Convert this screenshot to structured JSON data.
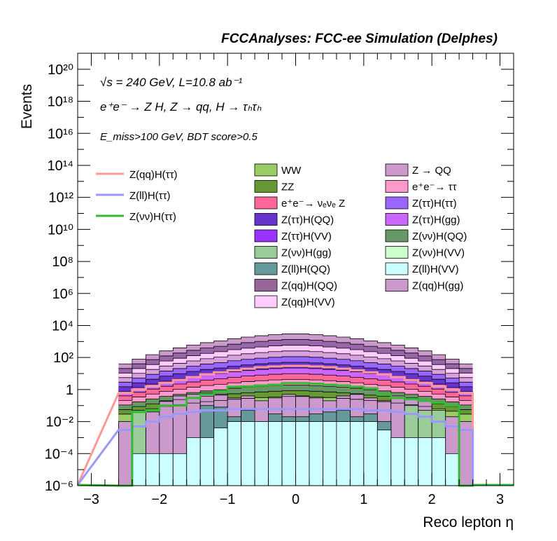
{
  "header": "FCCAnalyses: FCC-ee Simulation (Delphes)",
  "annotations": {
    "line1": "√s = 240 GeV, L=10.8 ab⁻¹",
    "line2": "e⁺e⁻ → Z H, Z → qq, H → τₕτₕ",
    "line3": "E_miss>100 GeV, BDT score>0.5"
  },
  "chart_data": {
    "type": "histogram",
    "xlabel": "Reco lepton η",
    "ylabel": "Events",
    "xlim": [
      -3.2,
      3.2
    ],
    "ylim": [
      1e-06,
      1e+21
    ],
    "yscale": "log",
    "x_ticks": [
      "−3",
      "−2",
      "−1",
      "0",
      "1",
      "2",
      "3"
    ],
    "y_ticks": [
      "10⁻⁶",
      "10⁻⁴",
      "10⁻²",
      "1",
      "10²",
      "10⁴",
      "10⁶",
      "10⁸",
      "10¹⁰",
      "10¹²",
      "10¹⁴",
      "10¹⁶",
      "10¹⁸",
      "10²⁰"
    ],
    "bin_edges": [
      -2.6,
      -2.4,
      -2.2,
      -2.0,
      -1.8,
      -1.6,
      -1.4,
      -1.2,
      -1.0,
      -0.8,
      -0.6,
      -0.4,
      -0.2,
      0.0,
      0.2,
      0.4,
      0.6,
      0.8,
      1.0,
      1.2,
      1.4,
      1.6,
      1.8,
      2.0,
      2.2,
      2.4,
      2.6
    ],
    "stack_top": [
      40,
      80,
      150,
      260,
      400,
      600,
      850,
      1100,
      1500,
      1900,
      2300,
      2700,
      3000,
      3000,
      2700,
      2300,
      1900,
      1500,
      1100,
      850,
      600,
      400,
      260,
      150,
      80,
      40
    ],
    "stacked_fill_colors": [
      "#cc99cc",
      "#9966aa",
      "#ffccff",
      "#d8a0dc",
      "#9966ff",
      "#6633cc",
      "#cc66ff",
      "#ff6699",
      "#ff99cc",
      "#669966",
      "#669933",
      "#99cc66"
    ],
    "stacked_backgrounds": [
      {
        "name": "Z(ll)H(VV)",
        "color": "#ccffff",
        "values": [
          0,
          0.0001,
          0.0001,
          0.0001,
          0.0001,
          0.001,
          0.001,
          0.004,
          0.01,
          0.01,
          0.01,
          0.01,
          0.01,
          0.01,
          0.01,
          0.01,
          0.01,
          0.01,
          0.01,
          0.003,
          0.001,
          0.001,
          0.001,
          0.001,
          0.0001,
          0
        ]
      },
      {
        "name": "Z(ll)H(QQ)",
        "color": "#669999",
        "values": [
          0,
          0,
          0,
          0,
          0,
          0,
          0.1,
          0.08,
          0.02,
          0.05,
          0.008,
          0.03,
          0.02,
          0.02,
          0.03,
          0.04,
          0.05,
          0.02,
          0.03,
          0.01,
          0,
          0,
          0,
          0,
          0,
          0
        ]
      },
      {
        "name": "Z(νν)H(gg)",
        "color": "#99cc99",
        "values": [
          0,
          0.05,
          0,
          0,
          0,
          0,
          0,
          0,
          0,
          0,
          0,
          0,
          0,
          0,
          0,
          0,
          0,
          0,
          0,
          0,
          0,
          0.1,
          0.05,
          0.05,
          0,
          0
        ]
      },
      {
        "name": "Z(qq)H(gg)",
        "color": "#cc99cc",
        "values": [
          0.01,
          0.02,
          0.04,
          0.2,
          0.4,
          0.5,
          0.6,
          0.5,
          0.3,
          0.4,
          0.2,
          0.3,
          0.5,
          0.4,
          0.3,
          0.2,
          0.4,
          0.5,
          0.3,
          0.2,
          0.4,
          0.3,
          0.2,
          0.04,
          0.02,
          0.01
        ]
      },
      {
        "name": "Z(qq)H(QQ)",
        "color": "#996699",
        "values": [
          0.02,
          0.03,
          0.1,
          0.2,
          0.3,
          0.4,
          0.6,
          0.8,
          1.0,
          1.2,
          1.4,
          1.5,
          1.6,
          1.6,
          1.5,
          1.4,
          1.2,
          1.0,
          0.8,
          0.6,
          0.4,
          0.3,
          0.2,
          0.1,
          0.03,
          0.02
        ]
      },
      {
        "name": "Z(ττ)H(ττ)",
        "color": "#9966ff",
        "values": [
          0.1,
          0.2,
          0.3,
          0.5,
          0.8,
          1.0,
          1.3,
          1.6,
          2.0,
          2.3,
          2.6,
          2.8,
          3.0,
          3.0,
          2.8,
          2.6,
          2.3,
          2.0,
          1.6,
          1.3,
          1.0,
          0.8,
          0.5,
          0.3,
          0.2,
          0.1
        ]
      },
      {
        "name": "Z(ττ)H(QQ)",
        "color": "#6633cc",
        "values": [
          0.3,
          0.6,
          1.0,
          1.6,
          2.4,
          3.4,
          4.6,
          6.0,
          7.6,
          9.0,
          10,
          11,
          12,
          12,
          11,
          10,
          9.0,
          7.6,
          6.0,
          4.6,
          3.4,
          2.4,
          1.6,
          1.0,
          0.6,
          0.3
        ]
      },
      {
        "name": "e⁺e⁻→νₑνₑ Z",
        "color": "#ff6699",
        "values": [
          1.0,
          2.0,
          3.5,
          6.0,
          9.0,
          13,
          18,
          24,
          30,
          36,
          42,
          47,
          50,
          50,
          47,
          42,
          36,
          30,
          24,
          18,
          13,
          9.0,
          6.0,
          3.5,
          2.0,
          1.0
        ]
      },
      {
        "name": "e⁺e⁻→ττ",
        "color": "#ff99cc",
        "values": [
          1.5,
          3.0,
          5.5,
          9.0,
          14,
          20,
          28,
          36,
          46,
          56,
          66,
          74,
          80,
          80,
          74,
          66,
          56,
          46,
          36,
          28,
          20,
          14,
          9.0,
          5.5,
          3.0,
          1.5
        ]
      },
      {
        "name": "Z(νν)H(QQ)",
        "color": "#669966",
        "values": [
          3.0,
          6.0,
          11,
          18,
          28,
          40,
          55,
          72,
          92,
          112,
          130,
          145,
          155,
          155,
          145,
          130,
          112,
          92,
          72,
          55,
          40,
          28,
          18,
          11,
          6.0,
          3.0
        ]
      },
      {
        "name": "ZZ",
        "color": "#669933",
        "values": [
          10,
          20,
          38,
          65,
          100,
          150,
          210,
          270,
          370,
          470,
          570,
          670,
          740,
          740,
          670,
          570,
          470,
          370,
          270,
          210,
          150,
          100,
          65,
          38,
          20,
          10
        ]
      },
      {
        "name": "WW",
        "color": "#99cc66",
        "values": [
          22,
          45,
          85,
          145,
          220,
          330,
          470,
          610,
          830,
          1050,
          1270,
          1490,
          1670,
          1670,
          1490,
          1270,
          1050,
          830,
          610,
          470,
          330,
          220,
          145,
          85,
          45,
          22
        ]
      }
    ],
    "signals": [
      {
        "name": "Z(qq)H(ττ)",
        "color": "#ff9999",
        "values": [
          0.6,
          1,
          1.6,
          2.6,
          4,
          6,
          9,
          12,
          16,
          20,
          25,
          28,
          30,
          30,
          28,
          25,
          20,
          16,
          12,
          9,
          6,
          4,
          2.6,
          1.6,
          1,
          0.6
        ]
      },
      {
        "name": "Z(ll)H(ττ)",
        "color": "#9999ff",
        "values": [
          0.003,
          0.005,
          0.01,
          0.02,
          0.03,
          0.04,
          0.05,
          0.05,
          0.06,
          0.06,
          0.06,
          0.06,
          0.06,
          0.06,
          0.06,
          0.06,
          0.06,
          0.06,
          0.05,
          0.05,
          0.04,
          0.03,
          0.02,
          0.01,
          0.005,
          0.003
        ]
      },
      {
        "name": "Z(νν)H(ττ)",
        "color": "#33bb33",
        "values": [
          1e-06,
          0.04,
          0.05,
          0.1,
          0.1,
          0.3,
          0.5,
          0.8,
          1.5,
          1.6,
          1.8,
          2.0,
          2.5,
          2.5,
          2.3,
          2.0,
          1.8,
          1.5,
          1.2,
          0.5,
          0.3,
          0.25,
          0.2,
          0.15,
          0.1,
          1e-06
        ]
      }
    ],
    "legend_signals": [
      "Z(qq)H(ττ)",
      "Z(ll)H(ττ)",
      "Z(νν)H(ττ)"
    ],
    "legend_backgrounds": [
      {
        "label": "WW",
        "color": "#99cc66"
      },
      {
        "label": "Z → QQ",
        "color": "#cc99cc"
      },
      {
        "label": "ZZ",
        "color": "#669933"
      },
      {
        "label": "e⁺e⁻→ ττ",
        "color": "#ff99cc"
      },
      {
        "label": "e⁺e⁻→ νₑνₑ Z",
        "color": "#ff6699"
      },
      {
        "label": "Z(ττ)H(ττ)",
        "color": "#9966ff"
      },
      {
        "label": "Z(ττ)H(QQ)",
        "color": "#6633cc"
      },
      {
        "label": "Z(ττ)H(gg)",
        "color": "#cc66ff"
      },
      {
        "label": "Z(ττ)H(VV)",
        "color": "#9933ff"
      },
      {
        "label": "Z(νν)H(QQ)",
        "color": "#669966"
      },
      {
        "label": "Z(νν)H(gg)",
        "color": "#99cc99"
      },
      {
        "label": "Z(νν)H(VV)",
        "color": "#ccffcc"
      },
      {
        "label": "Z(ll)H(QQ)",
        "color": "#669999"
      },
      {
        "label": "Z(ll)H(VV)",
        "color": "#ccffff"
      },
      {
        "label": "Z(qq)H(QQ)",
        "color": "#996699"
      },
      {
        "label": "Z(qq)H(gg)",
        "color": "#cc99cc"
      },
      {
        "label": "Z(qq)H(VV)",
        "color": "#ffccff"
      }
    ]
  }
}
